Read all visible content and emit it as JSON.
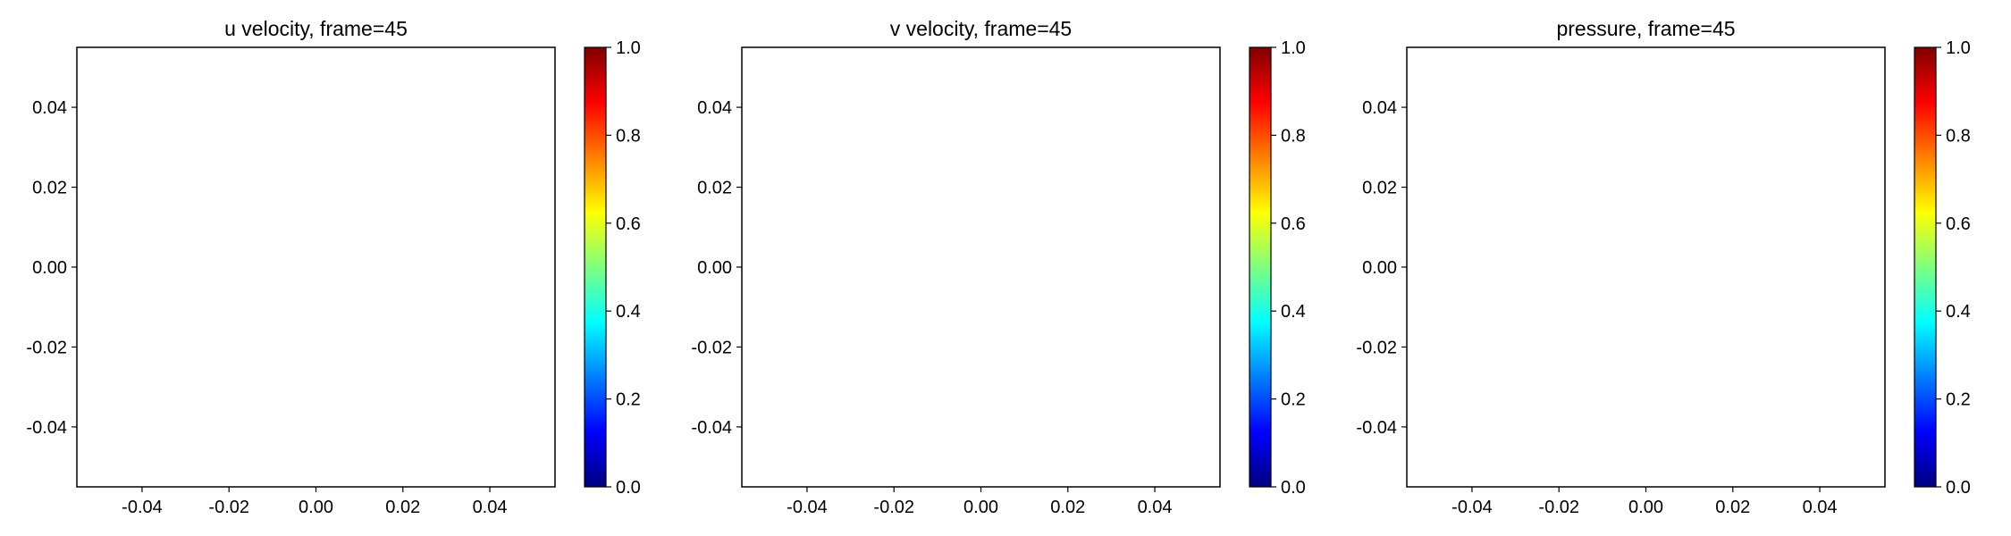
{
  "colormap": {
    "name": "jet",
    "stops": [
      "#00007f",
      "#0000ff",
      "#007fff",
      "#00ffff",
      "#7fff7f",
      "#ffff00",
      "#ff7f00",
      "#ff0000",
      "#7f0000"
    ]
  },
  "chart_data": [
    {
      "type": "heatmap",
      "title": "u velocity, frame=45",
      "xlabel": "",
      "ylabel": "",
      "xlim": [
        -0.055,
        0.055
      ],
      "ylim": [
        -0.055,
        0.055
      ],
      "xticks": [
        "-0.04",
        "-0.02",
        "0.00",
        "0.02",
        "0.04"
      ],
      "yticks": [
        "-0.04",
        "-0.02",
        "0.00",
        "0.02",
        "0.04"
      ],
      "values": [],
      "colorbar": {
        "range": [
          0.0,
          1.0
        ],
        "ticks": [
          "0.0",
          "0.2",
          "0.4",
          "0.6",
          "0.8",
          "1.0"
        ]
      },
      "grid": false
    },
    {
      "type": "heatmap",
      "title": "v velocity, frame=45",
      "xlabel": "",
      "ylabel": "",
      "xlim": [
        -0.055,
        0.055
      ],
      "ylim": [
        -0.055,
        0.055
      ],
      "xticks": [
        "-0.04",
        "-0.02",
        "0.00",
        "0.02",
        "0.04"
      ],
      "yticks": [
        "-0.04",
        "-0.02",
        "0.00",
        "0.02",
        "0.04"
      ],
      "values": [],
      "colorbar": {
        "range": [
          0.0,
          1.0
        ],
        "ticks": [
          "0.0",
          "0.2",
          "0.4",
          "0.6",
          "0.8",
          "1.0"
        ]
      },
      "grid": false
    },
    {
      "type": "heatmap",
      "title": "pressure, frame=45",
      "xlabel": "",
      "ylabel": "",
      "xlim": [
        -0.055,
        0.055
      ],
      "ylim": [
        -0.055,
        0.055
      ],
      "xticks": [
        "-0.04",
        "-0.02",
        "0.00",
        "0.02",
        "0.04"
      ],
      "yticks": [
        "-0.04",
        "-0.02",
        "0.00",
        "0.02",
        "0.04"
      ],
      "values": [],
      "colorbar": {
        "range": [
          0.0,
          1.0
        ],
        "ticks": [
          "0.0",
          "0.2",
          "0.4",
          "0.6",
          "0.8",
          "1.0"
        ]
      },
      "grid": false
    }
  ]
}
